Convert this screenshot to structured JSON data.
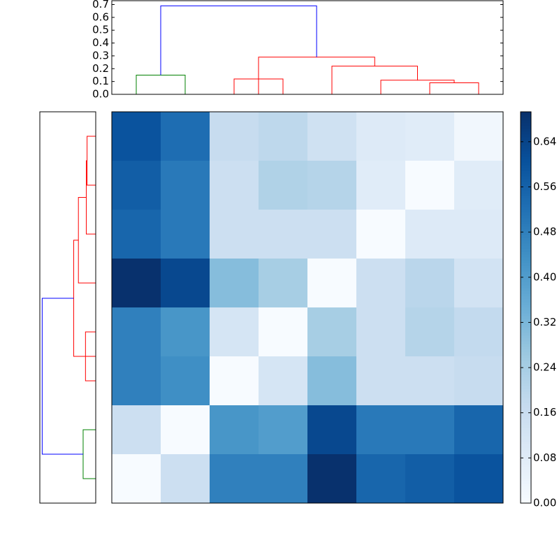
{
  "chart_data": [
    {
      "type": "dendrogram",
      "orientation": "top",
      "xlim": [
        0,
        80
      ],
      "ylim": [
        0,
        0.73
      ],
      "yticks": [
        {
          "value": 0,
          "label": "0.0"
        },
        0.1,
        0.2,
        0.3,
        0.4,
        0.5,
        0.6,
        0.7
      ],
      "links": [
        {
          "color": "#008000",
          "positions": [
            5,
            5,
            15,
            15
          ],
          "heights": [
            0,
            0.15,
            0.15,
            0
          ]
        },
        {
          "color": "#ff0000",
          "positions": [
            25,
            25,
            35,
            35
          ],
          "heights": [
            0,
            0.12,
            0.12,
            0
          ]
        },
        {
          "color": "#ff0000",
          "positions": [
            65,
            65,
            75,
            75
          ],
          "heights": [
            0,
            0.09,
            0.09,
            0
          ]
        },
        {
          "color": "#ff0000",
          "positions": [
            55,
            55,
            70,
            70
          ],
          "heights": [
            0,
            0.11,
            0.11,
            0.09
          ]
        },
        {
          "color": "#ff0000",
          "positions": [
            45,
            45,
            62.5,
            62.5
          ],
          "heights": [
            0,
            0.22,
            0.22,
            0.11
          ]
        },
        {
          "color": "#ff0000",
          "positions": [
            30,
            30,
            53.75,
            53.75
          ],
          "heights": [
            0,
            0.29,
            0.29,
            0.22
          ]
        },
        {
          "color": "#0000ff",
          "positions": [
            10,
            10,
            41.875,
            41.875
          ],
          "heights": [
            0.15,
            0.69,
            0.69,
            0.29
          ]
        }
      ]
    },
    {
      "type": "dendrogram",
      "orientation": "left",
      "xlim": [
        0,
        80
      ],
      "ylim": [
        0,
        0.71
      ],
      "links": [
        {
          "color": "#008000",
          "positions": [
            5,
            5,
            15,
            15
          ],
          "heights": [
            0,
            0.16,
            0.16,
            0
          ]
        },
        {
          "color": "#ff0000",
          "positions": [
            25,
            25,
            35,
            35
          ],
          "heights": [
            0,
            0.13,
            0.13,
            0
          ]
        },
        {
          "color": "#ff0000",
          "positions": [
            65,
            65,
            75,
            75
          ],
          "heights": [
            0,
            0.11,
            0.11,
            0
          ]
        },
        {
          "color": "#ff0000",
          "positions": [
            55,
            55,
            70,
            70
          ],
          "heights": [
            0,
            0.12,
            0.12,
            0.11
          ]
        },
        {
          "color": "#ff0000",
          "positions": [
            45,
            45,
            62.5,
            62.5
          ],
          "heights": [
            0,
            0.22,
            0.22,
            0.12
          ]
        },
        {
          "color": "#ff0000",
          "positions": [
            30,
            30,
            53.75,
            53.75
          ],
          "heights": [
            0,
            0.28,
            0.28,
            0.22
          ]
        },
        {
          "color": "#0000ff",
          "positions": [
            10,
            10,
            41.875,
            41.875
          ],
          "heights": [
            0.16,
            0.68,
            0.68,
            0.28
          ]
        }
      ]
    },
    {
      "type": "heatmap",
      "colormap": "Blues",
      "clim": [
        0,
        0.693
      ],
      "values": [
        [
          0.6,
          0.53,
          0.17,
          0.19,
          0.14,
          0.09,
          0.08,
          0.02
        ],
        [
          0.57,
          0.5,
          0.15,
          0.22,
          0.21,
          0.08,
          0.0,
          0.08
        ],
        [
          0.55,
          0.5,
          0.15,
          0.15,
          0.15,
          0.0,
          0.09,
          0.09
        ],
        [
          0.69,
          0.63,
          0.3,
          0.24,
          0.0,
          0.15,
          0.2,
          0.13
        ],
        [
          0.48,
          0.42,
          0.12,
          0.0,
          0.24,
          0.15,
          0.21,
          0.18
        ],
        [
          0.48,
          0.44,
          0.0,
          0.12,
          0.3,
          0.15,
          0.15,
          0.17
        ],
        [
          0.15,
          0.0,
          0.42,
          0.4,
          0.63,
          0.5,
          0.5,
          0.55
        ],
        [
          0.0,
          0.15,
          0.48,
          0.48,
          0.69,
          0.55,
          0.57,
          0.6
        ]
      ],
      "colorbar_ticks": [
        {
          "value": 0,
          "label": "0.00"
        },
        {
          "value": 0.08,
          "label": "0.08"
        },
        {
          "value": 0.16,
          "label": "0.16"
        },
        {
          "value": 0.24,
          "label": "0.24"
        },
        {
          "value": 0.32,
          "label": "0.32"
        },
        {
          "value": 0.4,
          "label": "0.40"
        },
        {
          "value": 0.48,
          "label": "0.48"
        },
        {
          "value": 0.56,
          "label": "0.56"
        },
        {
          "value": 0.64,
          "label": "0.64"
        }
      ]
    }
  ]
}
